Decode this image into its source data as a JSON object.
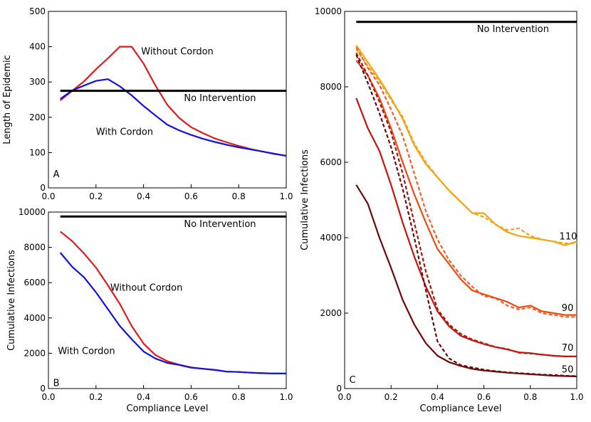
{
  "chart_data": [
    {
      "panel_label": "A",
      "type": "line",
      "xlabel": "",
      "ylabel": "Length of Epidemic",
      "xlim": [
        0.0,
        1.0
      ],
      "ylim": [
        0,
        500
      ],
      "xticks": [
        "0.0",
        "0.2",
        "0.4",
        "0.6",
        "0.8",
        "1.0"
      ],
      "yticks": [
        "0",
        "100",
        "200",
        "300",
        "400",
        "500"
      ],
      "grid": false,
      "series": [
        {
          "color": "#e31a1c",
          "dash": "solid",
          "x": [
            0.05,
            0.1,
            0.15,
            0.2,
            0.25,
            0.3,
            0.35,
            0.4,
            0.45,
            0.5,
            0.55,
            0.6,
            0.65,
            0.7,
            0.75,
            0.8,
            0.85,
            0.9,
            0.95,
            1.0
          ],
          "y": [
            248,
            275,
            302,
            336,
            367,
            400,
            400,
            352,
            290,
            235,
            198,
            172,
            155,
            140,
            129,
            119,
            110,
            103,
            96,
            91
          ]
        },
        {
          "color": "#1010e8",
          "dash": "solid",
          "x": [
            0.05,
            0.1,
            0.15,
            0.2,
            0.25,
            0.3,
            0.35,
            0.4,
            0.45,
            0.5,
            0.55,
            0.6,
            0.65,
            0.7,
            0.75,
            0.8,
            0.85,
            0.9,
            0.95,
            1.0
          ],
          "y": [
            252,
            276,
            290,
            303,
            308,
            288,
            262,
            232,
            205,
            179,
            163,
            150,
            139,
            130,
            122,
            115,
            109,
            103,
            97,
            91
          ]
        },
        {
          "color": "#000000",
          "dash": "solid",
          "width": 3,
          "x": [
            0.05,
            1.0
          ],
          "y": [
            275,
            275
          ]
        }
      ],
      "annotations": [
        {
          "text": "Without Cordon",
          "x": 0.39,
          "y": 378
        },
        {
          "text": "No Intervention",
          "x": 0.57,
          "y": 246
        },
        {
          "text": "With Cordon",
          "x": 0.2,
          "y": 150
        },
        {
          "text": "A",
          "x": 0.02,
          "y": 30
        }
      ]
    },
    {
      "panel_label": "B",
      "type": "line",
      "xlabel": "Compliance Level",
      "ylabel": "Cumulative Infections",
      "xlim": [
        0.0,
        1.0
      ],
      "ylim": [
        0,
        10000
      ],
      "xticks": [
        "0.0",
        "0.2",
        "0.4",
        "0.6",
        "0.8",
        "1.0"
      ],
      "yticks": [
        "0",
        "2000",
        "4000",
        "6000",
        "8000",
        "10000"
      ],
      "grid": false,
      "series": [
        {
          "color": "#e31a1c",
          "dash": "solid",
          "x": [
            0.05,
            0.1,
            0.15,
            0.2,
            0.25,
            0.3,
            0.35,
            0.4,
            0.45,
            0.5,
            0.55,
            0.6,
            0.65,
            0.7,
            0.75,
            0.8,
            0.85,
            0.9,
            0.95,
            1.0
          ],
          "y": [
            8900,
            8350,
            7650,
            6850,
            5850,
            4800,
            3550,
            2550,
            1900,
            1550,
            1350,
            1200,
            1120,
            1050,
            960,
            940,
            900,
            870,
            850,
            850
          ]
        },
        {
          "color": "#1010e8",
          "dash": "solid",
          "x": [
            0.05,
            0.1,
            0.15,
            0.2,
            0.25,
            0.3,
            0.35,
            0.4,
            0.45,
            0.5,
            0.55,
            0.6,
            0.65,
            0.7,
            0.75,
            0.8,
            0.85,
            0.9,
            0.95,
            1.0
          ],
          "y": [
            7700,
            6900,
            6300,
            5450,
            4500,
            3550,
            2800,
            2100,
            1700,
            1450,
            1340,
            1180,
            1120,
            1060,
            960,
            940,
            900,
            870,
            850,
            850
          ]
        },
        {
          "color": "#000000",
          "dash": "solid",
          "width": 3,
          "x": [
            0.05,
            1.0
          ],
          "y": [
            9750,
            9750
          ]
        }
      ],
      "annotations": [
        {
          "text": "No Intervention",
          "x": 0.57,
          "y": 9150
        },
        {
          "text": "Without Cordon",
          "x": 0.26,
          "y": 5550
        },
        {
          "text": "With Cordon",
          "x": 0.04,
          "y": 1950
        },
        {
          "text": "B",
          "x": 0.02,
          "y": 150
        }
      ]
    },
    {
      "panel_label": "C",
      "type": "line",
      "xlabel": "Compliance Level",
      "ylabel": "Cumulative Infections",
      "xlim": [
        0.0,
        1.0
      ],
      "ylim": [
        0,
        10000
      ],
      "xticks": [
        "0.0",
        "0.2",
        "0.4",
        "0.6",
        "0.8",
        "1.0"
      ],
      "yticks": [
        "0",
        "2000",
        "4000",
        "6000",
        "8000",
        "10000"
      ],
      "grid": false,
      "series": [
        {
          "color": "#000000",
          "dash": "solid",
          "width": 3,
          "x": [
            0.05,
            1.0
          ],
          "y": [
            9720,
            9720
          ]
        },
        {
          "name": "110",
          "color": "#f5a30f",
          "dash": "solid",
          "x": [
            0.05,
            0.1,
            0.15,
            0.2,
            0.25,
            0.3,
            0.35,
            0.4,
            0.45,
            0.5,
            0.55,
            0.6,
            0.65,
            0.7,
            0.75,
            0.8,
            0.85,
            0.9,
            0.95,
            1.0
          ],
          "y": [
            9100,
            8650,
            8200,
            7700,
            7150,
            6450,
            5950,
            5600,
            5250,
            4950,
            4650,
            4650,
            4350,
            4150,
            4050,
            4000,
            3950,
            3900,
            3800,
            3900
          ]
        },
        {
          "color": "#f5a30f",
          "dash": "5,3",
          "x": [
            0.05,
            0.1,
            0.15,
            0.2,
            0.25,
            0.3,
            0.35,
            0.4,
            0.45,
            0.5,
            0.55,
            0.6,
            0.65,
            0.7,
            0.75,
            0.8,
            0.85,
            0.9,
            0.95,
            1.0
          ],
          "y": [
            9000,
            8550,
            8150,
            7650,
            7200,
            6500,
            6000,
            5600,
            5250,
            4950,
            4650,
            4550,
            4350,
            4200,
            4250,
            4050,
            3950,
            3900,
            3850,
            3850
          ]
        },
        {
          "color": "#ff5a1f",
          "dash": "5,3",
          "x": [
            0.05,
            0.1,
            0.15,
            0.2,
            0.25,
            0.3,
            0.35,
            0.4,
            0.45,
            0.5,
            0.55,
            0.6,
            0.65,
            0.7,
            0.75,
            0.8,
            0.85,
            0.9,
            0.95,
            1.0
          ],
          "y": [
            9050,
            8500,
            8050,
            7400,
            6700,
            5700,
            4700,
            3950,
            3400,
            3000,
            2700,
            2450,
            2400,
            2200,
            2100,
            2150,
            2000,
            1950,
            1900,
            1900
          ]
        },
        {
          "name": "90",
          "color": "#f04a12",
          "dash": "solid",
          "x": [
            0.05,
            0.1,
            0.15,
            0.2,
            0.25,
            0.3,
            0.35,
            0.4,
            0.45,
            0.5,
            0.55,
            0.6,
            0.65,
            0.7,
            0.75,
            0.8,
            0.85,
            0.9,
            0.95,
            1.0
          ],
          "y": [
            8700,
            8300,
            7700,
            6900,
            6000,
            5150,
            4400,
            3700,
            3300,
            2900,
            2600,
            2500,
            2400,
            2300,
            2150,
            2200,
            2050,
            2000,
            1950,
            1950
          ]
        },
        {
          "color": "#b01008",
          "dash": "5,3",
          "x": [
            0.05,
            0.1,
            0.15,
            0.2,
            0.25,
            0.3,
            0.35,
            0.4,
            0.45,
            0.5,
            0.55,
            0.6,
            0.65,
            0.7,
            0.75,
            0.8,
            0.85,
            0.9,
            0.95,
            1.0
          ],
          "y": [
            8900,
            8300,
            7600,
            6800,
            5700,
            4400,
            3100,
            2100,
            1700,
            1450,
            1300,
            1200,
            1100,
            1050,
            950,
            930,
            900,
            870,
            850,
            850
          ]
        },
        {
          "name": "70",
          "color": "#c8120c",
          "dash": "solid",
          "x": [
            0.05,
            0.1,
            0.15,
            0.2,
            0.25,
            0.3,
            0.35,
            0.4,
            0.45,
            0.5,
            0.55,
            0.6,
            0.65,
            0.7,
            0.75,
            0.8,
            0.85,
            0.9,
            0.95,
            1.0
          ],
          "y": [
            7700,
            6900,
            6300,
            5400,
            4400,
            3500,
            2700,
            2050,
            1650,
            1400,
            1280,
            1180,
            1100,
            1040,
            960,
            940,
            900,
            870,
            850,
            850
          ]
        },
        {
          "color": "#6e0808",
          "dash": "5,3",
          "x": [
            0.05,
            0.1,
            0.15,
            0.2,
            0.25,
            0.3,
            0.35,
            0.4,
            0.45,
            0.5,
            0.55,
            0.6,
            0.65,
            0.7,
            0.75,
            0.8,
            0.85,
            0.9,
            0.95,
            1.0
          ],
          "y": [
            8850,
            8100,
            7300,
            6400,
            5300,
            4000,
            2600,
            1250,
            800,
            620,
            560,
            500,
            460,
            430,
            410,
            390,
            370,
            360,
            340,
            330
          ]
        },
        {
          "name": "50",
          "color": "#6e0808",
          "dash": "solid",
          "x": [
            0.05,
            0.1,
            0.15,
            0.2,
            0.25,
            0.3,
            0.35,
            0.4,
            0.45,
            0.5,
            0.55,
            0.6,
            0.65,
            0.7,
            0.75,
            0.8,
            0.85,
            0.9,
            0.95,
            1.0
          ],
          "y": [
            5400,
            4900,
            4000,
            3200,
            2350,
            1700,
            1200,
            870,
            700,
            600,
            520,
            480,
            450,
            420,
            400,
            380,
            360,
            340,
            330,
            320
          ]
        }
      ],
      "annotations": [
        {
          "text": "No Intervention",
          "x": 0.57,
          "y": 9450
        },
        {
          "text": "110",
          "x": 0.925,
          "y": 3950
        },
        {
          "text": "90",
          "x": 0.935,
          "y": 2060
        },
        {
          "text": "70",
          "x": 0.935,
          "y": 1000
        },
        {
          "text": "50",
          "x": 0.935,
          "y": 420
        },
        {
          "text": "C",
          "x": 0.02,
          "y": 150
        }
      ]
    }
  ]
}
